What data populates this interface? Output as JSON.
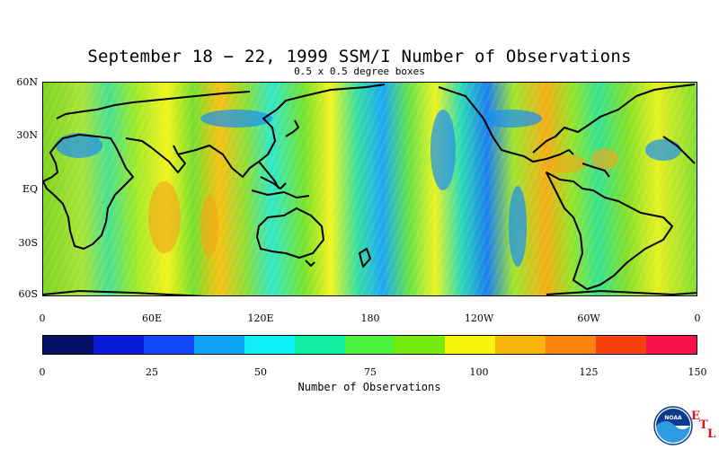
{
  "title": "September 18 − 22, 1999 SSM/I Number of Observations",
  "subtitle": "0.5 x 0.5 degree boxes",
  "map": {
    "lat_labels": [
      "60N",
      "30N",
      "EQ",
      "30S",
      "60S"
    ],
    "lon_labels": [
      "0",
      "60E",
      "120E",
      "180",
      "120W",
      "60W",
      "0"
    ],
    "lat_range": [
      -60,
      60
    ],
    "lon_range": [
      0,
      360
    ]
  },
  "colorbar": {
    "title": "Number of Observations",
    "tick_labels": [
      "0",
      "25",
      "50",
      "75",
      "100",
      "125",
      "150"
    ],
    "range": [
      0,
      150
    ],
    "colors": [
      "#061066",
      "#0a1cd8",
      "#1048f8",
      "#0fa4f6",
      "#10f0f6",
      "#10f0a4",
      "#4cf03a",
      "#74ea10",
      "#f8f40a",
      "#f8b40a",
      "#f88410",
      "#f84010",
      "#f81048"
    ]
  },
  "logo": {
    "text": "NOAA",
    "letters": [
      "E",
      "T",
      "L"
    ]
  }
}
